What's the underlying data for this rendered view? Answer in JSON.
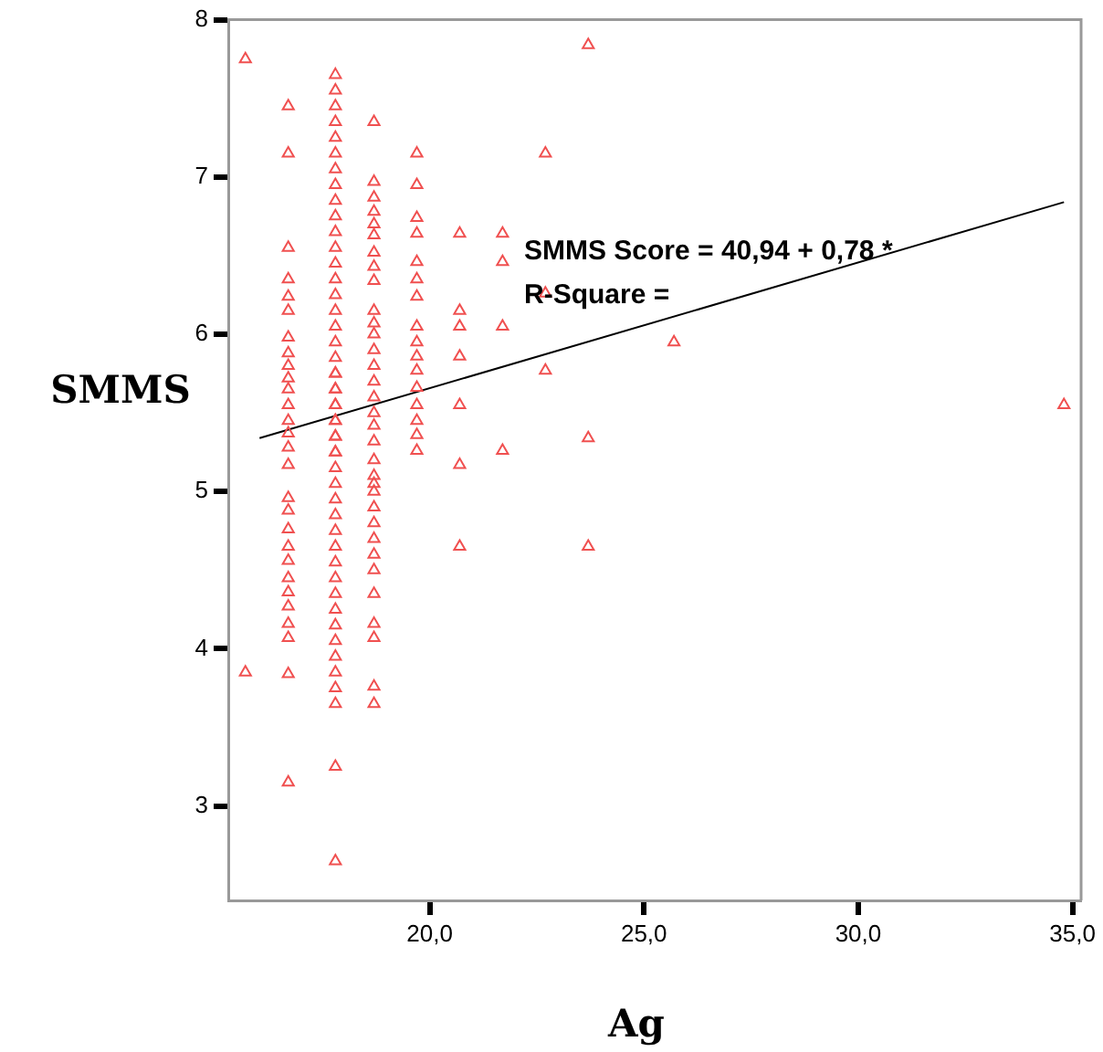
{
  "chart_data": {
    "type": "scatter",
    "xlabel": "Ag",
    "ylabel": "SMMS",
    "grid": false,
    "legend": false,
    "xlim": [
      15.3,
      35.2
    ],
    "ylim": [
      2.4,
      8
    ],
    "xticks": [
      {
        "value": 20,
        "label": "20,0"
      },
      {
        "value": 25,
        "label": "25,0"
      },
      {
        "value": 30,
        "label": "30,0"
      },
      {
        "value": 35,
        "label": "35,0"
      }
    ],
    "yticks": [
      3,
      4,
      5,
      6,
      7,
      8
    ],
    "annotations": [
      "SMMS Score = 40,94 + 0,78 *",
      "R-Square ="
    ],
    "series": [
      {
        "color": "#f05050",
        "marker": "triangle",
        "x": [
          15.7,
          15.7,
          16.7,
          16.7,
          16.7,
          16.7,
          16.7,
          16.7,
          16.7,
          16.7,
          16.7,
          16.7,
          16.7,
          16.7,
          16.7,
          16.7,
          16.7,
          16.7,
          16.7,
          16.7,
          16.7,
          16.7,
          16.7,
          16.7,
          16.7,
          16.7,
          16.7,
          16.7,
          16.7,
          16.7,
          17.8,
          17.8,
          17.8,
          17.8,
          17.8,
          17.8,
          17.8,
          17.8,
          17.8,
          17.8,
          17.8,
          17.8,
          17.8,
          17.8,
          17.8,
          17.8,
          17.8,
          17.8,
          17.8,
          17.8,
          17.8,
          17.8,
          17.8,
          17.8,
          17.8,
          17.8,
          17.8,
          17.8,
          17.8,
          17.8,
          17.8,
          17.8,
          17.8,
          17.8,
          17.8,
          17.8,
          17.8,
          17.8,
          17.8,
          17.8,
          17.8,
          17.8,
          17.8,
          17.8,
          17.8,
          17.8,
          17.8,
          17.8,
          17.8,
          18.7,
          18.7,
          18.7,
          18.7,
          18.7,
          18.7,
          18.7,
          18.7,
          18.7,
          18.7,
          18.7,
          18.7,
          18.7,
          18.7,
          18.7,
          18.7,
          18.7,
          18.7,
          18.7,
          18.7,
          18.7,
          18.7,
          18.7,
          18.7,
          18.7,
          18.7,
          18.7,
          18.7,
          18.7,
          18.7,
          18.7,
          18.7,
          18.7,
          19.7,
          19.7,
          19.7,
          19.7,
          19.7,
          19.7,
          19.7,
          19.7,
          19.7,
          19.7,
          19.7,
          19.7,
          19.7,
          19.7,
          19.7,
          19.7,
          20.7,
          20.7,
          20.7,
          20.7,
          20.7,
          20.7,
          20.7,
          21.7,
          21.7,
          21.7,
          21.7,
          22.7,
          22.7,
          22.7,
          23.7,
          23.7,
          23.7,
          25.7,
          34.8
        ],
        "values": [
          7.75,
          3.85,
          7.45,
          7.15,
          6.55,
          6.35,
          6.24,
          6.15,
          5.98,
          5.88,
          5.8,
          5.72,
          5.65,
          5.55,
          5.45,
          5.37,
          5.28,
          5.17,
          4.96,
          4.88,
          4.76,
          4.65,
          4.56,
          4.45,
          4.36,
          4.27,
          4.16,
          4.07,
          3.84,
          3.15,
          7.65,
          7.55,
          7.45,
          7.35,
          7.25,
          7.15,
          7.05,
          6.95,
          6.85,
          6.75,
          6.65,
          6.55,
          6.45,
          6.35,
          6.25,
          6.15,
          6.05,
          5.95,
          5.85,
          5.75,
          5.65,
          5.55,
          5.45,
          5.35,
          5.25,
          5.15,
          5.05,
          4.95,
          4.85,
          4.75,
          4.65,
          4.55,
          4.45,
          4.35,
          4.25,
          4.15,
          4.05,
          3.95,
          3.85,
          3.75,
          3.65,
          3.25,
          2.65,
          5.75,
          5.65,
          5.55,
          5.45,
          5.35,
          5.25,
          7.35,
          6.97,
          6.87,
          6.78,
          6.7,
          6.63,
          6.52,
          6.43,
          6.34,
          6.15,
          6.07,
          6,
          5.9,
          5.8,
          5.7,
          5.6,
          5.5,
          5.42,
          5.32,
          5.2,
          5.1,
          5,
          4.9,
          4.8,
          4.7,
          4.6,
          4.5,
          4.35,
          4.16,
          4.07,
          3.76,
          3.65,
          5.05,
          7.15,
          6.95,
          6.74,
          6.64,
          6.46,
          6.35,
          6.24,
          6.05,
          5.95,
          5.86,
          5.77,
          5.66,
          5.55,
          5.45,
          5.36,
          5.26,
          6.64,
          6.15,
          6.05,
          5.86,
          5.55,
          5.17,
          4.65,
          6.64,
          6.46,
          6.05,
          5.26,
          7.15,
          6.26,
          5.77,
          7.84,
          5.34,
          4.65,
          5.95,
          5.55
        ]
      },
      {
        "type": "line",
        "marker": "none",
        "color": "#000000",
        "x": [
          16.03,
          34.8
        ],
        "values": [
          5.34,
          6.84
        ]
      }
    ]
  }
}
